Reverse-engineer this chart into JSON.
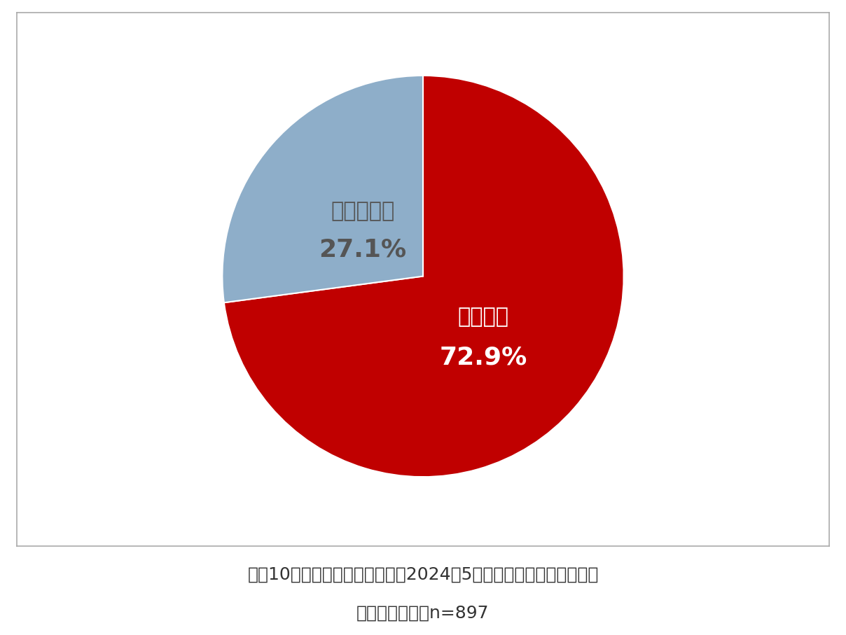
{
  "slices": [
    72.9,
    27.1
  ],
  "labels": [
    "知らない",
    "知っている"
  ],
  "colors": [
    "#c00000",
    "#8eaec9"
  ],
  "label_colors": [
    "#ffffff",
    "#555555"
  ],
  "pct_colors": [
    "#ffffff",
    "#555555"
  ],
  "pct_values": [
    "72.9%",
    "27.1%"
  ],
  "startangle": 90,
  "caption_line1": "＜困10：電気料金の引き下げが2024年5月使用分で終了することを",
  "caption_line2": "知っていたか＞n=897",
  "caption_fontsize": 18,
  "background_color": "#ffffff",
  "border_color": "#aaaaaa",
  "label_fontsize": 22,
  "pct_fontsize": 26
}
